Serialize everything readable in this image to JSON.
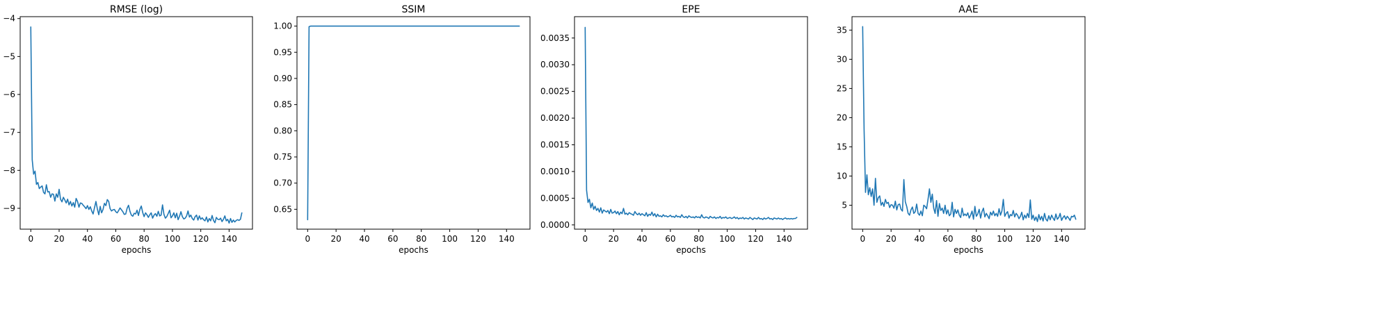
{
  "chart_data": [
    {
      "type": "line",
      "title": "RMSE (log)",
      "xlabel": "epochs",
      "ylabel": "",
      "xlim": [
        -7.5,
        156.5
      ],
      "ylim": [
        -9.55,
        -3.95
      ],
      "x_ticks": [
        0,
        20,
        40,
        60,
        80,
        100,
        120,
        140
      ],
      "y_ticks": [
        -9,
        -8,
        -7,
        -6,
        -5,
        -4
      ],
      "y_tick_labels": [
        "−9",
        "−8",
        "−7",
        "−6",
        "−5",
        "−4"
      ],
      "grid": false,
      "color": "#1f77b4",
      "series": [
        {
          "x_start": 0,
          "values": [
            -4.22,
            -7.72,
            -8.1,
            -8.02,
            -8.37,
            -8.32,
            -8.48,
            -8.44,
            -8.41,
            -8.58,
            -8.62,
            -8.38,
            -8.57,
            -8.56,
            -8.71,
            -8.62,
            -8.63,
            -8.81,
            -8.62,
            -8.71,
            -8.5,
            -8.76,
            -8.83,
            -8.71,
            -8.78,
            -8.86,
            -8.76,
            -8.91,
            -8.82,
            -8.94,
            -8.85,
            -8.97,
            -8.74,
            -8.82,
            -8.97,
            -8.86,
            -8.87,
            -8.92,
            -8.96,
            -9.01,
            -8.93,
            -9.03,
            -8.96,
            -9.07,
            -9.15,
            -8.98,
            -8.82,
            -9.02,
            -9.17,
            -8.95,
            -9.12,
            -9.03,
            -8.87,
            -8.93,
            -8.77,
            -8.82,
            -9.01,
            -9.07,
            -9.04,
            -9.03,
            -9.09,
            -9.12,
            -9.06,
            -8.99,
            -9.04,
            -9.09,
            -9.16,
            -9.15,
            -9.0,
            -8.92,
            -9.08,
            -9.18,
            -9.21,
            -9.13,
            -9.15,
            -9.05,
            -9.19,
            -9.03,
            -8.94,
            -9.11,
            -9.22,
            -9.12,
            -9.17,
            -9.24,
            -9.17,
            -9.12,
            -9.26,
            -9.18,
            -9.14,
            -9.21,
            -9.08,
            -9.2,
            -9.18,
            -8.91,
            -9.16,
            -9.26,
            -9.22,
            -9.14,
            -9.05,
            -9.25,
            -9.2,
            -9.12,
            -9.25,
            -9.13,
            -9.3,
            -9.21,
            -9.09,
            -9.22,
            -9.28,
            -9.26,
            -9.2,
            -9.07,
            -9.23,
            -9.18,
            -9.27,
            -9.31,
            -9.22,
            -9.18,
            -9.31,
            -9.2,
            -9.29,
            -9.25,
            -9.3,
            -9.33,
            -9.23,
            -9.36,
            -9.27,
            -9.33,
            -9.19,
            -9.32,
            -9.38,
            -9.24,
            -9.29,
            -9.3,
            -9.26,
            -9.35,
            -9.29,
            -9.2,
            -9.33,
            -9.29,
            -9.39,
            -9.27,
            -9.37,
            -9.31,
            -9.36,
            -9.32,
            -9.3,
            -9.32,
            -9.29,
            -9.12
          ]
        }
      ]
    },
    {
      "type": "line",
      "title": "SSIM",
      "xlabel": "epochs",
      "ylabel": "",
      "xlim": [
        -7.5,
        156.5
      ],
      "ylim": [
        0.612,
        1.018
      ],
      "x_ticks": [
        0,
        20,
        40,
        60,
        80,
        100,
        120,
        140
      ],
      "y_ticks": [
        0.65,
        0.7,
        0.75,
        0.8,
        0.85,
        0.9,
        0.95,
        1.0
      ],
      "y_tick_labels": [
        "0.65",
        "0.70",
        "0.75",
        "0.80",
        "0.85",
        "0.90",
        "0.95",
        "1.00"
      ],
      "grid": false,
      "color": "#1f77b4",
      "series": [
        {
          "x": [
            0,
            1,
            2,
            149
          ],
          "values": [
            0.63,
            0.999,
            1.0,
            1.0
          ]
        }
      ]
    },
    {
      "type": "line",
      "title": "EPE",
      "xlabel": "epochs",
      "ylabel": "",
      "xlim": [
        -7.5,
        156.5
      ],
      "ylim": [
        -8e-05,
        0.0039
      ],
      "x_ticks": [
        0,
        20,
        40,
        60,
        80,
        100,
        120,
        140
      ],
      "y_ticks": [
        0.0,
        0.0005,
        0.001,
        0.0015,
        0.002,
        0.0025,
        0.003,
        0.0035
      ],
      "y_tick_labels": [
        "0.0000",
        "0.0005",
        "0.0010",
        "0.0015",
        "0.0020",
        "0.0025",
        "0.0030",
        "0.0035"
      ],
      "grid": false,
      "color": "#1f77b4",
      "series": [
        {
          "x_start": 0,
          "values": [
            0.0037,
            0.00065,
            0.00042,
            0.00048,
            0.00032,
            0.00041,
            0.00029,
            0.00035,
            0.00027,
            0.00031,
            0.00024,
            0.00032,
            0.00022,
            0.00028,
            0.00026,
            0.00024,
            0.00027,
            0.00021,
            0.00029,
            0.00022,
            0.00023,
            0.00026,
            0.00021,
            0.00025,
            0.00019,
            0.00024,
            0.00021,
            0.00031,
            0.0002,
            0.00022,
            0.00019,
            0.00023,
            0.00021,
            0.0002,
            0.00018,
            0.00025,
            0.00021,
            0.00019,
            0.00022,
            0.00018,
            0.00021,
            0.00019,
            0.00017,
            0.00023,
            0.00016,
            0.0002,
            0.00018,
            0.00024,
            0.00017,
            0.00021,
            0.00015,
            0.0002,
            0.00016,
            0.00017,
            0.00015,
            0.00019,
            0.00016,
            0.00017,
            0.00015,
            0.00016,
            0.00018,
            0.00015,
            0.00016,
            0.00014,
            0.00018,
            0.00015,
            0.00016,
            0.00014,
            0.00019,
            0.00015,
            0.00014,
            0.00016,
            0.00013,
            0.00017,
            0.00015,
            0.00014,
            0.00015,
            0.00013,
            0.00016,
            0.00014,
            0.00015,
            0.00013,
            0.00019,
            0.00014,
            0.00013,
            0.00015,
            0.00014,
            0.00012,
            0.00016,
            0.00014,
            0.00013,
            0.00015,
            0.00012,
            0.00014,
            0.00013,
            0.00016,
            0.00012,
            0.00014,
            0.00013,
            0.00015,
            0.00012,
            0.00013,
            0.00014,
            0.00012,
            0.00013,
            0.00015,
            0.00012,
            0.00014,
            0.00011,
            0.00013,
            0.00012,
            0.00014,
            0.00011,
            0.00013,
            0.00012,
            0.00011,
            0.00014,
            0.00012,
            0.0001,
            0.00013,
            0.00012,
            0.00011,
            0.00014,
            0.00011,
            0.00012,
            0.0001,
            0.00013,
            0.00011,
            0.00012,
            0.00014,
            0.00011,
            0.00012,
            0.0001,
            0.00013,
            0.00012,
            0.00011,
            0.00013,
            0.00011,
            0.00012,
            0.0001,
            0.00012,
            0.00013,
            0.00011,
            0.00012,
            0.00011,
            0.00012,
            0.00011,
            0.00012,
            0.00012,
            0.00014
          ]
        }
      ]
    },
    {
      "type": "line",
      "title": "AAE",
      "xlabel": "epochs",
      "ylabel": "",
      "xlim": [
        -7.5,
        156.5
      ],
      "ylim": [
        0.9,
        37.3
      ],
      "x_ticks": [
        0,
        20,
        40,
        60,
        80,
        100,
        120,
        140
      ],
      "y_ticks": [
        5,
        10,
        15,
        20,
        25,
        30,
        35
      ],
      "y_tick_labels": [
        "5",
        "10",
        "15",
        "20",
        "25",
        "30",
        "35"
      ],
      "grid": false,
      "color": "#1f77b4",
      "series": [
        {
          "x_start": 0,
          "values": [
            35.6,
            18.0,
            7.2,
            10.2,
            6.8,
            8.0,
            6.5,
            7.8,
            5.0,
            9.6,
            5.5,
            6.3,
            6.6,
            5.0,
            5.5,
            4.8,
            6.0,
            5.3,
            5.5,
            4.6,
            5.1,
            5.0,
            4.5,
            5.7,
            4.2,
            5.1,
            5.2,
            4.3,
            4.0,
            9.4,
            5.6,
            4.8,
            3.6,
            3.3,
            4.2,
            4.7,
            3.6,
            3.9,
            5.2,
            3.6,
            3.3,
            4.0,
            3.2,
            5.0,
            4.8,
            4.4,
            6.0,
            7.8,
            5.5,
            6.9,
            4.5,
            3.6,
            5.8,
            3.1,
            5.3,
            4.1,
            4.5,
            3.6,
            5.0,
            3.5,
            4.2,
            3.2,
            3.5,
            5.5,
            3.0,
            4.3,
            3.6,
            4.2,
            3.3,
            2.9,
            4.5,
            3.2,
            3.5,
            3.2,
            3.7,
            2.8,
            3.3,
            4.0,
            2.6,
            4.8,
            3.1,
            3.5,
            4.3,
            2.8,
            3.9,
            4.5,
            3.0,
            3.6,
            3.2,
            2.7,
            3.8,
            3.3,
            4.0,
            3.2,
            3.6,
            3.1,
            4.4,
            3.3,
            4.0,
            6.0,
            3.1,
            3.6,
            3.9,
            2.8,
            3.4,
            3.2,
            4.1,
            3.0,
            3.6,
            3.3,
            2.7,
            3.1,
            3.8,
            2.5,
            3.3,
            2.8,
            3.6,
            2.9,
            5.9,
            2.6,
            3.3,
            2.4,
            3.0,
            2.2,
            3.4,
            2.5,
            3.1,
            2.3,
            3.6,
            2.6,
            2.3,
            3.2,
            2.5,
            3.3,
            2.8,
            2.4,
            3.5,
            2.6,
            2.9,
            3.6,
            2.4,
            2.9,
            3.2,
            2.6,
            3.1,
            2.8,
            2.4,
            3.1,
            3.0,
            3.3,
            2.6
          ]
        }
      ]
    }
  ]
}
